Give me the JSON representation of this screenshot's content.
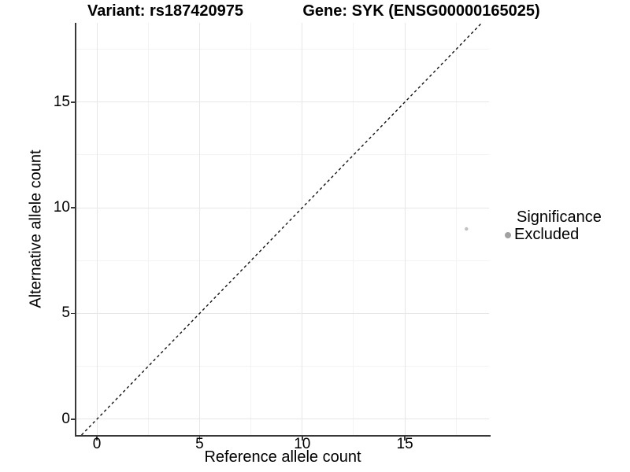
{
  "chart_data": {
    "type": "scatter",
    "title_left": "Variant: rs187420975",
    "title_right": "Gene: SYK (ENSG00000165025)",
    "xlabel": "Reference allele count",
    "ylabel": "Alternative allele count",
    "xlim": [
      -1,
      19.1
    ],
    "ylim": [
      -0.75,
      18.75
    ],
    "x_major_ticks": [
      0,
      5,
      10,
      15
    ],
    "y_major_ticks": [
      0,
      5,
      10,
      15
    ],
    "x_minor_gridlines": [
      2.5,
      7.5,
      12.5,
      17.5
    ],
    "y_minor_gridlines": [
      2.5,
      7.5,
      12.5,
      17.5
    ],
    "grid": "major+minor on white background",
    "legend_position": "right",
    "series": [
      {
        "name": "Excluded",
        "marker": "small-circle",
        "color": "#c0c0c0",
        "points": [
          {
            "x": 18,
            "y": 9
          }
        ]
      }
    ],
    "reference_line": {
      "equation": "y = x",
      "style": "dashed",
      "color": "#111111"
    }
  },
  "legend": {
    "title": "Significance",
    "items": [
      {
        "label": "Excluded",
        "color": "#a1a1a1"
      }
    ]
  },
  "colors": {
    "background": "#ffffff",
    "axis_line": "#383838",
    "tick_mark": "#383838",
    "grid_major": "#e7e7e7",
    "grid_minor": "#f3f3f3",
    "point": "#c0c0c0",
    "legend_dot": "#a1a1a1",
    "dashed_line": "#111111",
    "text": "#000000"
  }
}
